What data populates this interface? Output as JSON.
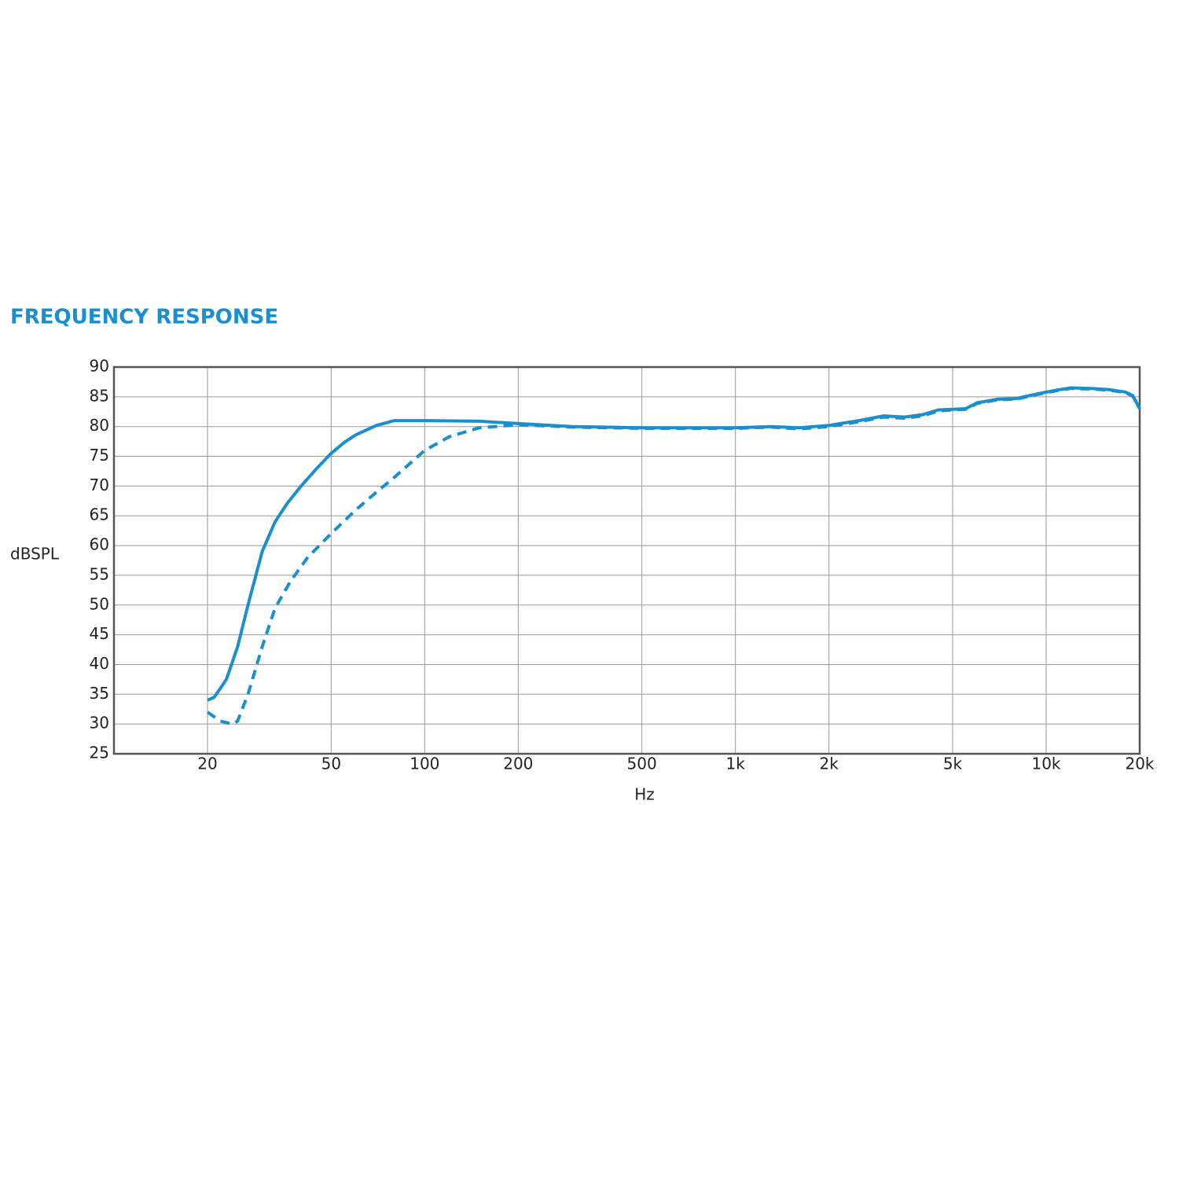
{
  "chart_data": {
    "type": "line",
    "title": "FREQUENCY RESPONSE",
    "x_label": "Hz",
    "y_label": "dBSPL",
    "x_scale": "log",
    "grid": true,
    "xlim": [
      10,
      20000
    ],
    "ylim": [
      25,
      90
    ],
    "xticks": [
      20,
      50,
      100,
      200,
      500,
      {
        "value": 1000,
        "label": "1k"
      },
      {
        "value": 2000,
        "label": "2k"
      },
      {
        "value": 5000,
        "label": "5k"
      },
      {
        "value": 10000,
        "label": "10k"
      },
      {
        "value": 20000,
        "label": "20k"
      }
    ],
    "yticks": [
      25,
      30,
      35,
      40,
      45,
      50,
      55,
      60,
      65,
      70,
      75,
      80,
      85,
      90
    ],
    "series": [
      {
        "color": "#1a8fd0",
        "line_style": "solid",
        "x": [
          20,
          21,
          22,
          23,
          25,
          27,
          30,
          33,
          36,
          40,
          45,
          50,
          55,
          60,
          70,
          80,
          100,
          150,
          200,
          300,
          500,
          700,
          1000,
          1300,
          1600,
          2000,
          2500,
          3000,
          3500,
          4000,
          4500,
          5000,
          5500,
          6000,
          7000,
          8000,
          9000,
          10000,
          11000,
          12000,
          14000,
          16000,
          18000,
          19000,
          20000
        ],
        "values": [
          34,
          34.5,
          36,
          37.5,
          43,
          50,
          59,
          64,
          67,
          70,
          73,
          75.5,
          77.3,
          78.6,
          80.2,
          81,
          81,
          80.9,
          80.5,
          80,
          79.8,
          79.8,
          79.8,
          80,
          79.8,
          80.2,
          81,
          81.8,
          81.6,
          82,
          82.8,
          82.9,
          83,
          84,
          84.6,
          84.7,
          85.3,
          85.8,
          86.2,
          86.5,
          86.4,
          86.2,
          85.8,
          85.2,
          83
        ]
      },
      {
        "color": "#1a8fd0",
        "line_style": "dashed",
        "x": [
          20,
          22,
          24,
          25,
          27,
          30,
          33,
          37,
          42,
          50,
          60,
          70,
          80,
          100,
          120,
          150,
          200,
          300,
          500,
          700,
          1000,
          1300,
          1600,
          2000,
          2500,
          3000,
          3500,
          4000,
          4500,
          5000,
          5500,
          6000,
          7000,
          8000,
          9000,
          10000,
          11000,
          12000,
          14000,
          16000,
          18000,
          19000,
          20000
        ],
        "values": [
          32,
          30.5,
          30,
          30.5,
          35,
          43,
          49.5,
          54,
          58,
          62,
          66,
          69,
          71.5,
          76,
          78.3,
          79.8,
          80.3,
          79.9,
          79.7,
          79.7,
          79.7,
          79.9,
          79.6,
          80,
          80.8,
          81.6,
          81.4,
          81.8,
          82.6,
          82.8,
          82.9,
          83.9,
          84.5,
          84.6,
          85.2,
          85.7,
          86.1,
          86.4,
          86.3,
          86.1,
          85.7,
          85.1,
          83
        ]
      }
    ]
  }
}
